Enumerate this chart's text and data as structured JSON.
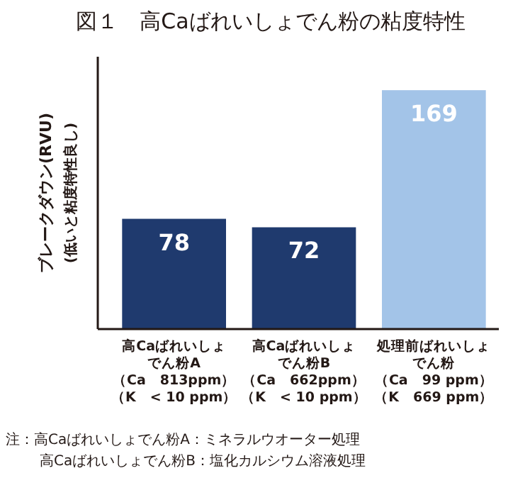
{
  "chart_data": {
    "type": "bar",
    "title": "図１　高Caばれいしょでん粉の粘度特性",
    "ylabel": "ブレークダウン(RVU)\n(低いと粘度特性良し)",
    "categories": [
      "高Caばれいしょでん粉A（Ca　813ppm）（K　< 10 ppm）",
      "高Caばれいしょでん粉B（Ca　662ppm）（K　< 10 ppm）",
      "処理前ばれいしょでん粉（Ca　99 ppm）（K　669 ppm）"
    ],
    "values": [
      78,
      72,
      169
    ],
    "colors": [
      "#1f3a6e",
      "#1f3a6e",
      "#a3c4e8"
    ],
    "data_labels": true,
    "annotations": [
      "注：高Caばれいしょでん粉A：ミネラルウオーター処理",
      "高Caばれいしょでん粉B：塩化カルシウム溶液処理"
    ]
  }
}
